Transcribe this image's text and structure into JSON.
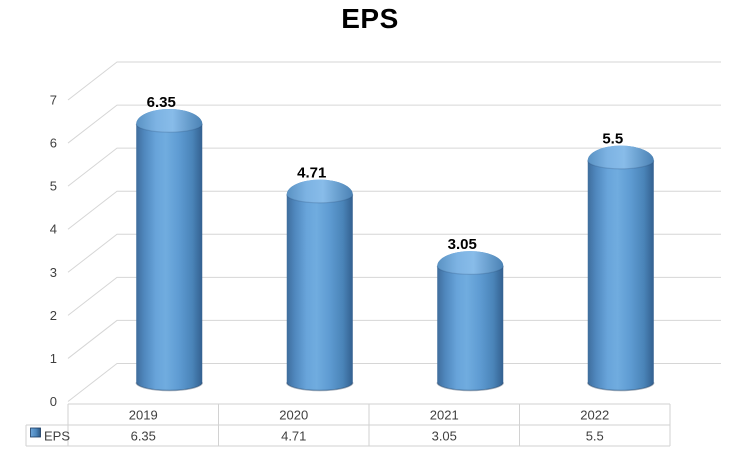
{
  "title": "EPS",
  "chart_data": {
    "type": "bar",
    "style": "3d-cylinder",
    "title": "EPS",
    "categories": [
      "2019",
      "2020",
      "2021",
      "2022"
    ],
    "series": [
      {
        "name": "EPS",
        "values": [
          6.35,
          4.71,
          3.05,
          5.5
        ],
        "labels": [
          "6.35",
          "4.71",
          "3.05",
          "5.5"
        ]
      }
    ],
    "xlabel": "",
    "ylabel": "",
    "ylim": [
      0,
      7
    ],
    "yticks": [
      0,
      1,
      2,
      3,
      4,
      5,
      6,
      7
    ],
    "grid": true,
    "legend_position": "data-table-left",
    "data_table": {
      "row_header": "EPS",
      "columns": [
        "2019",
        "2020",
        "2021",
        "2022"
      ],
      "values": [
        "6.35",
        "4.71",
        "3.05",
        "5.5"
      ]
    }
  },
  "colors": {
    "background": "#ffffff",
    "bar_dark_edge": "#3f6d9c",
    "bar_dark_right": "#336090",
    "bar_mid": "#5b9bd5",
    "bar_highlight": "#70acdf",
    "cap_light": "#88bce9",
    "cap_edge": "#4b82b4",
    "gridline": "#d6d6d6",
    "table_border": "#d2d2d2",
    "axis_text": "#3f3f3f",
    "title_text": "#000000",
    "value_label": "#000000",
    "legend_key_border": "#17375e"
  }
}
